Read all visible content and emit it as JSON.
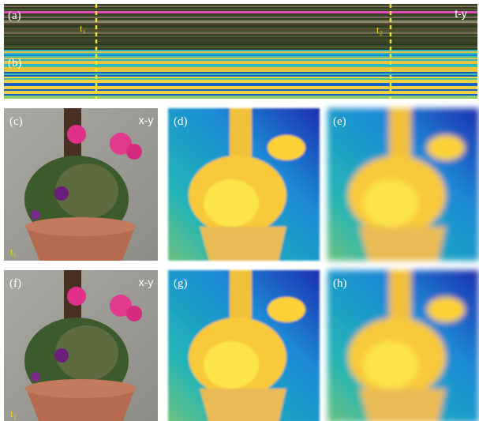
{
  "strip": {
    "labels": [
      "(a)",
      "(b)"
    ],
    "markers": [
      "t₁",
      "t₂"
    ],
    "view": "t-y"
  },
  "rows": [
    {
      "labels": [
        "(c)",
        "(d)",
        "(e)"
      ],
      "view": "x-y",
      "time": "t₁"
    },
    {
      "labels": [
        "(f)",
        "(g)",
        "(h)"
      ],
      "view": "x-y",
      "time": "t₂"
    }
  ]
}
